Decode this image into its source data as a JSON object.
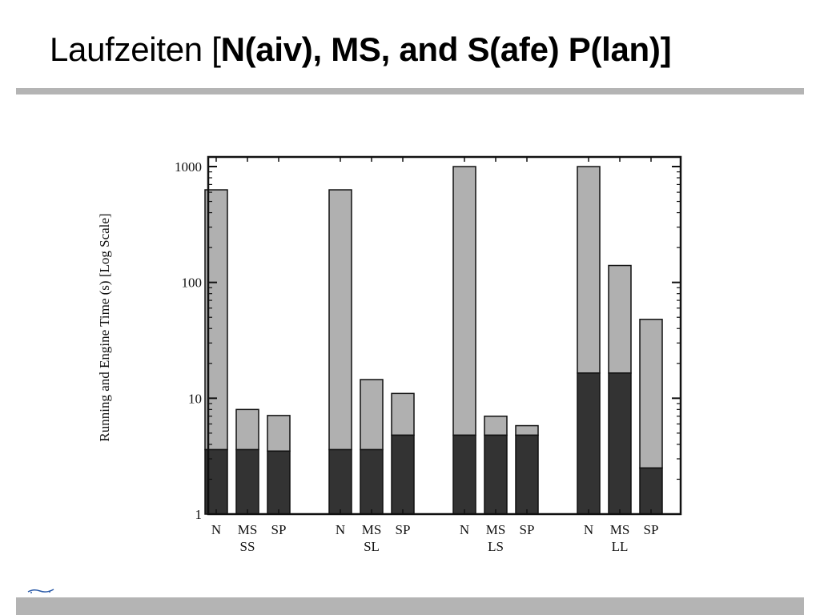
{
  "slide": {
    "title_plain": "Laufzeiten [",
    "title_bold": "N(aiv), MS, and S(afe) P(lan)]"
  },
  "colors": {
    "engine": "#333333",
    "running": "#b0b0b0",
    "rule": "#b4b4b4"
  },
  "chart_data": {
    "type": "bar",
    "stacked": true,
    "log_scale": true,
    "ylabel": "Running and Engine Time (s) [Log Scale]",
    "ylim": [
      1,
      1000
    ],
    "yticks": [
      1,
      10,
      100,
      1000
    ],
    "ytick_labels": [
      "1",
      "10",
      "100",
      "1000"
    ],
    "groups": [
      {
        "name": "SS",
        "bars": [
          {
            "label": "N",
            "engine": 3.6,
            "total": 630
          },
          {
            "label": "MS",
            "engine": 3.6,
            "total": 8
          },
          {
            "label": "SP",
            "engine": 3.5,
            "total": 7.1
          }
        ]
      },
      {
        "name": "SL",
        "bars": [
          {
            "label": "N",
            "engine": 3.6,
            "total": 630
          },
          {
            "label": "MS",
            "engine": 3.6,
            "total": 14.5
          },
          {
            "label": "SP",
            "engine": 4.8,
            "total": 11
          }
        ]
      },
      {
        "name": "LS",
        "bars": [
          {
            "label": "N",
            "engine": 4.8,
            "total": 1000
          },
          {
            "label": "MS",
            "engine": 4.8,
            "total": 7
          },
          {
            "label": "SP",
            "engine": 4.8,
            "total": 5.8
          }
        ]
      },
      {
        "name": "LL",
        "bars": [
          {
            "label": "N",
            "engine": 16.5,
            "total": 1000
          },
          {
            "label": "MS",
            "engine": 16.5,
            "total": 140
          },
          {
            "label": "SP",
            "engine": 2.5,
            "total": 48
          }
        ]
      }
    ]
  }
}
